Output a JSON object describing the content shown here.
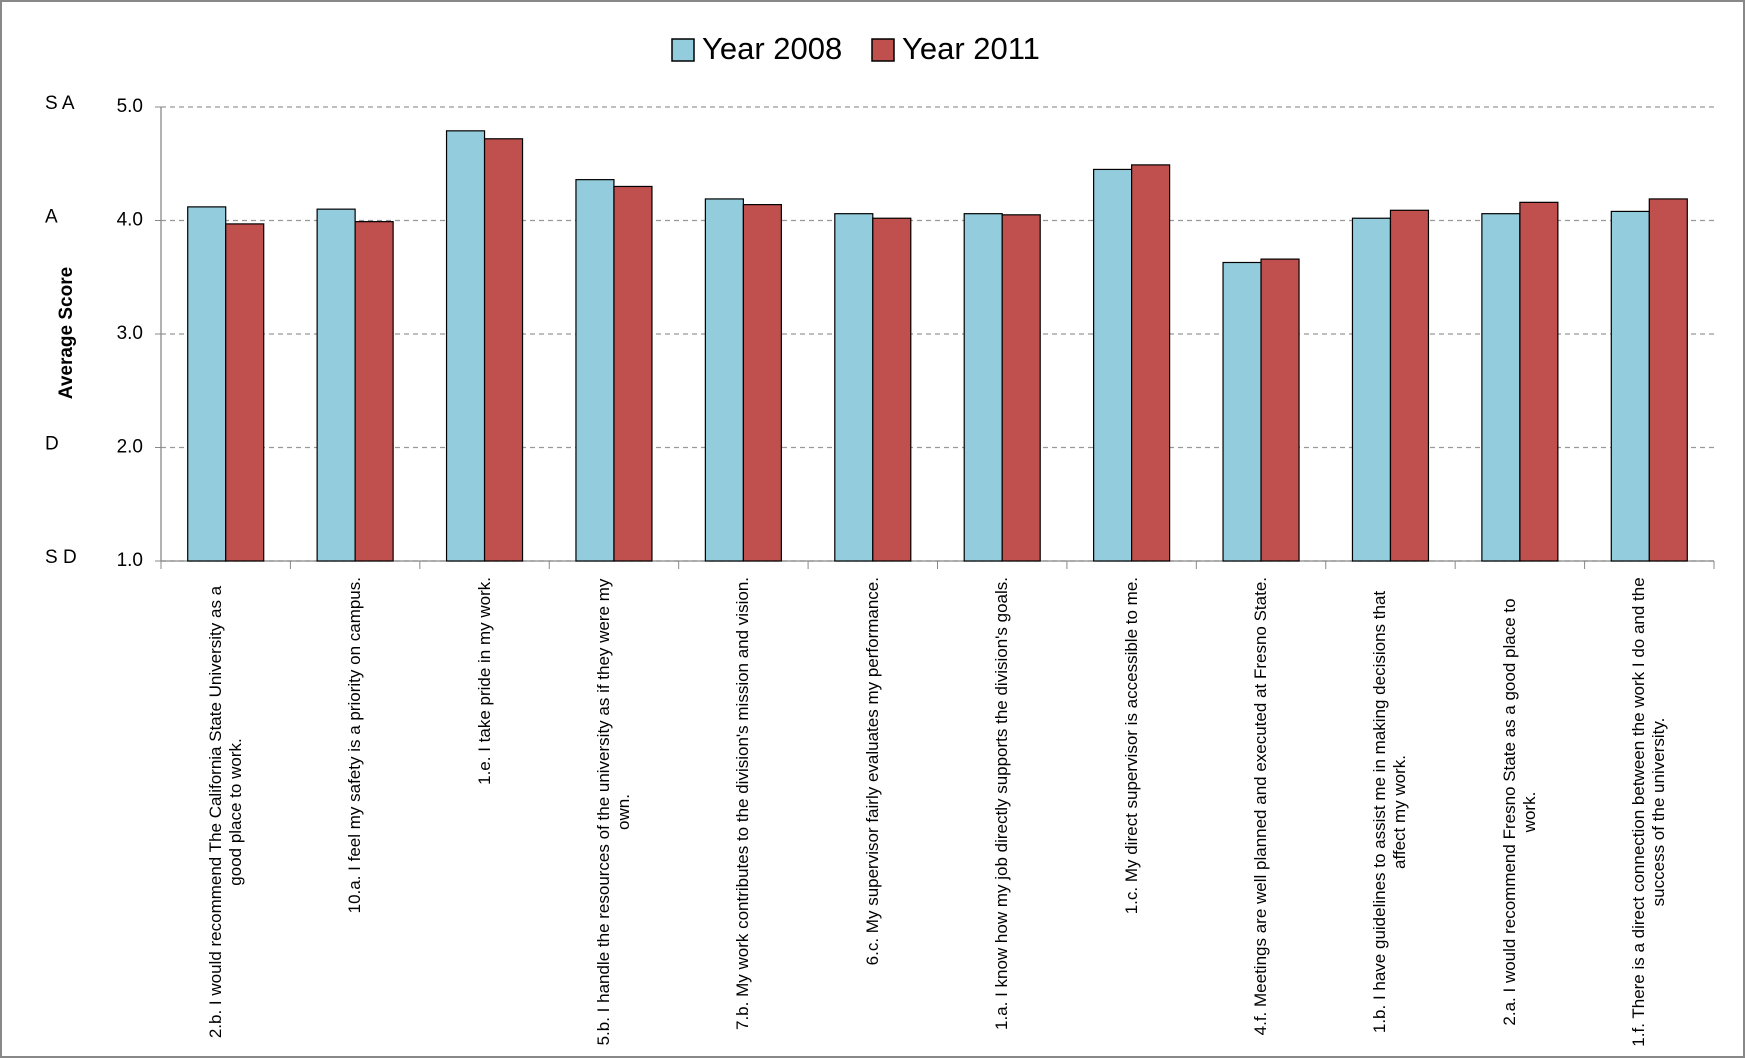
{
  "chart_data": {
    "type": "bar",
    "y_label": "Average Score",
    "categories": [
      "2.b. I would recommend The California State University as a good place to work.",
      "10.a. I feel my safety is a priority on campus.",
      "1.e. I take pride in my work.",
      "5.b. I handle the resources of the university as if they were my own.",
      "7.b. My work contributes to the division's mission and vision.",
      "6.c. My supervisor fairly evaluates my performance.",
      "1.a. I know how my job directly supports the division's goals.",
      "1.c. My direct supervisor is accessible to me.",
      "4.f. Meetings are well planned and executed at Fresno State.",
      "1.b. I have guidelines to assist me in making decisions that affect my work.",
      "2.a. I would recommend Fresno State as a good place to work.",
      "1.f. There is a direct connection between the work I do and the success of the university."
    ],
    "series": [
      {
        "name": "Year 2008",
        "color": "#93cddd",
        "values": [
          4.12,
          4.1,
          4.79,
          4.36,
          4.19,
          4.06,
          4.06,
          4.45,
          3.63,
          4.02,
          4.06,
          4.08
        ]
      },
      {
        "name": "Year 2011",
        "color": "#c0504d",
        "values": [
          3.97,
          3.99,
          4.72,
          4.3,
          4.14,
          4.02,
          4.05,
          4.49,
          3.66,
          4.09,
          4.16,
          4.19
        ]
      }
    ],
    "ylim": [
      1,
      5
    ],
    "yticks": [
      {
        "value": 1,
        "label": "1.0"
      },
      {
        "value": 2,
        "label": "2.0"
      },
      {
        "value": 3,
        "label": "3.0"
      },
      {
        "value": 4,
        "label": "4.0"
      },
      {
        "value": 5,
        "label": "5.0"
      }
    ],
    "scale_labels": [
      {
        "value": 5,
        "label": "S A"
      },
      {
        "value": 4,
        "label": "A"
      },
      {
        "value": 2,
        "label": "D"
      },
      {
        "value": 1,
        "label": "S D"
      }
    ],
    "grid": true,
    "legend": "top"
  }
}
